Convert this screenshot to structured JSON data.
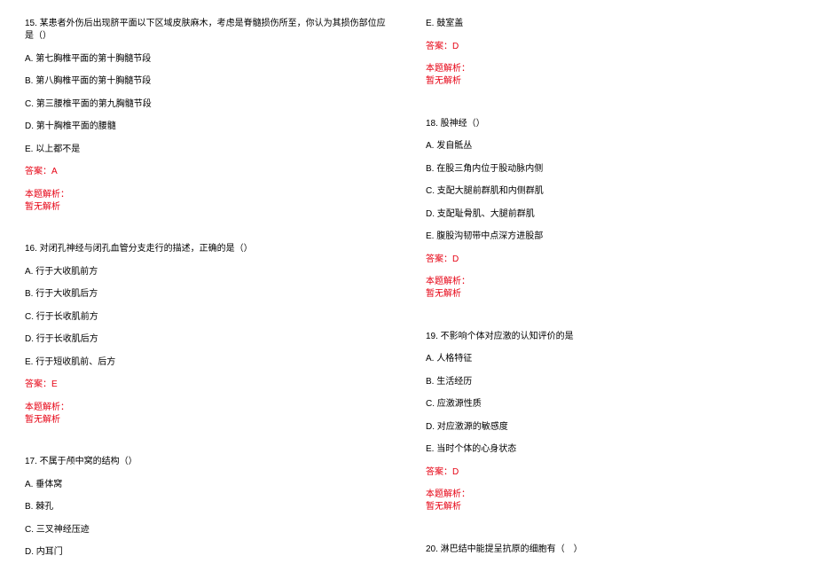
{
  "column1": {
    "q15": {
      "question": "15. 某患者外伤后出现脐平面以下区域皮肤麻木，考虑是脊髓损伤所至，你认为其损伤部位应是（）",
      "optA": "A. 第七胸椎平面的第十胸髓节段",
      "optB": "B. 第八胸椎平面的第十胸髓节段",
      "optC": "C. 第三腰椎平面的第九胸髓节段",
      "optD": "D. 第十胸椎平面的腰髓",
      "optE": "E. 以上都不是",
      "answer": "答案：A",
      "analysisLabel": "本题解析：",
      "analysisText": "暂无解析"
    },
    "q16": {
      "question": "16. 对闭孔神经与闭孔血管分支走行的描述，正确的是（）",
      "optA": "A. 行于大收肌前方",
      "optB": "B. 行于大收肌后方",
      "optC": "C. 行于长收肌前方",
      "optD": "D. 行于长收肌后方",
      "optE": "E. 行于短收肌前、后方",
      "answer": "答案：E",
      "analysisLabel": "本题解析：",
      "analysisText": "暂无解析"
    },
    "q17": {
      "question": "17. 不属于颅中窝的结构（）",
      "optA": "A. 垂体窝",
      "optB": "B. 棘孔",
      "optC": "C. 三叉神经压迹",
      "optD": "D. 内耳门"
    }
  },
  "column2": {
    "q17e": "E. 鼓室盖",
    "q17answer": "答案：D",
    "q17analysisLabel": "本题解析：",
    "q17analysisText": "暂无解析",
    "q18": {
      "question": "18. 股神经（）",
      "optA": "A. 发自骶丛",
      "optB": "B. 在股三角内位于股动脉内侧",
      "optC": "C. 支配大腿前群肌和内侧群肌",
      "optD": "D. 支配耻骨肌、大腿前群肌",
      "optE": "E. 腹股沟韧带中点深方进股部",
      "answer": "答案：D",
      "analysisLabel": "本题解析：",
      "analysisText": "暂无解析"
    },
    "q19": {
      "question": "19. 不影响个体对应激的认知评价的是",
      "optA": "A. 人格特征",
      "optB": "B. 生活经历",
      "optC": "C. 应激源性质",
      "optD": "D. 对应激源的敏感度",
      "optE": "E. 当时个体的心身状态",
      "answer": "答案：D",
      "analysisLabel": "本题解析：",
      "analysisText": "暂无解析"
    },
    "q20": {
      "question": "20. 淋巴结中能提呈抗原的细胞有（　）"
    }
  }
}
